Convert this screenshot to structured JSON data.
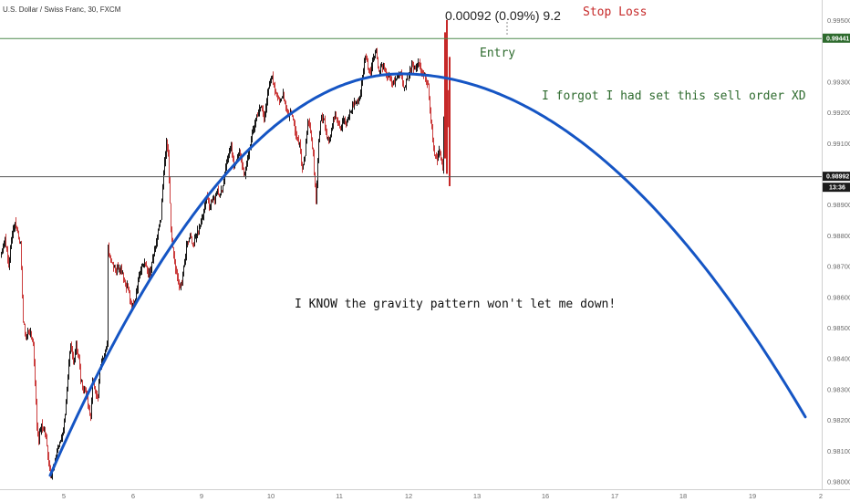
{
  "symbol_label": "U.S. Dollar / Swiss Franc, 30, FXCM",
  "colors": {
    "up": "#000000",
    "down": "#c62828",
    "curve": "#1555c4",
    "entry_line": "#4e8a4e",
    "price_line": "#555555",
    "annotation_green": "#2e6b2e",
    "annotation_red": "#c62828"
  },
  "chart_data": {
    "type": "candlestick",
    "instrument": "U.S. Dollar / Swiss Franc, 30, FXCM",
    "x_tick_labels": [
      "5",
      "6",
      "9",
      "10",
      "11",
      "12",
      "13",
      "16",
      "17",
      "18",
      "19",
      "2"
    ],
    "y_tick_labels": [
      "0.99500",
      "0.99441",
      "0.99300",
      "0.99200",
      "0.99100",
      "0.98992",
      "0.98900",
      "0.98800",
      "0.98700",
      "0.98600",
      "0.98500",
      "0.98400",
      "0.98300",
      "0.98200",
      "0.98100",
      "0.98000"
    ],
    "y_range": [
      0.97975,
      0.99565
    ],
    "grid": false,
    "entry_price": 0.99441,
    "entry_price_label": "0.99441",
    "current_price": 0.98992,
    "current_price_label": "0.98992",
    "countdown_label": "13:36",
    "measure_label": "0.00092 (0.09%) 9.2",
    "annotations": {
      "stop_loss": "Stop Loss",
      "entry": "Entry",
      "forgot": "I forgot I had set this sell order XD",
      "gravity": "I KNOW the gravity pattern won't let me down!"
    },
    "close_path": [
      [
        0,
        0.9873
      ],
      [
        5,
        0.9879
      ],
      [
        9,
        0.987
      ],
      [
        13,
        0.9881
      ],
      [
        16,
        0.9884
      ],
      [
        19,
        0.9881
      ],
      [
        22,
        0.9877
      ],
      [
        25,
        0.9852
      ],
      [
        28,
        0.9847
      ],
      [
        31,
        0.9849
      ],
      [
        34,
        0.9847
      ],
      [
        36,
        0.9845
      ],
      [
        38,
        0.9833
      ],
      [
        40,
        0.9818
      ],
      [
        42,
        0.9814
      ],
      [
        45,
        0.9818
      ],
      [
        49,
        0.9816
      ],
      [
        52,
        0.9809
      ],
      [
        55,
        0.9802
      ],
      [
        59,
        0.9805
      ],
      [
        62,
        0.981
      ],
      [
        66,
        0.9813
      ],
      [
        70,
        0.9819
      ],
      [
        73,
        0.9829
      ],
      [
        75,
        0.9838
      ],
      [
        77,
        0.9844
      ],
      [
        80,
        0.9839
      ],
      [
        83,
        0.9845
      ],
      [
        86,
        0.984
      ],
      [
        88,
        0.9833
      ],
      [
        91,
        0.983
      ],
      [
        94,
        0.9829
      ],
      [
        96,
        0.9824
      ],
      [
        99,
        0.9821
      ],
      [
        101,
        0.9832
      ],
      [
        104,
        0.983
      ],
      [
        107,
        0.9827
      ],
      [
        109,
        0.9836
      ],
      [
        112,
        0.984
      ],
      [
        115,
        0.9843
      ],
      [
        117,
        0.9844
      ],
      [
        118,
        0.9876
      ],
      [
        120,
        0.9873
      ],
      [
        123,
        0.9871
      ],
      [
        127,
        0.9869
      ],
      [
        130,
        0.987
      ],
      [
        134,
        0.9868
      ],
      [
        137,
        0.9864
      ],
      [
        140,
        0.9863
      ],
      [
        143,
        0.9857
      ],
      [
        146,
        0.9858
      ],
      [
        149,
        0.9861
      ],
      [
        152,
        0.9868
      ],
      [
        155,
        0.987
      ],
      [
        158,
        0.9871
      ],
      [
        161,
        0.9869
      ],
      [
        164,
        0.9867
      ],
      [
        167,
        0.9872
      ],
      [
        170,
        0.9876
      ],
      [
        172,
        0.988
      ],
      [
        174,
        0.9883
      ],
      [
        176,
        0.9885
      ],
      [
        178,
        0.9895
      ],
      [
        180,
        0.9904
      ],
      [
        182,
        0.991
      ],
      [
        184,
        0.9906
      ],
      [
        187,
        0.9882
      ],
      [
        190,
        0.9873
      ],
      [
        193,
        0.9868
      ],
      [
        196,
        0.9863
      ],
      [
        199,
        0.9865
      ],
      [
        202,
        0.9872
      ],
      [
        205,
        0.9878
      ],
      [
        208,
        0.988
      ],
      [
        211,
        0.9877
      ],
      [
        214,
        0.9879
      ],
      [
        217,
        0.9882
      ],
      [
        220,
        0.9884
      ],
      [
        223,
        0.9888
      ],
      [
        226,
        0.9893
      ],
      [
        229,
        0.989
      ],
      [
        232,
        0.9891
      ],
      [
        235,
        0.9892
      ],
      [
        238,
        0.9895
      ],
      [
        241,
        0.9893
      ],
      [
        244,
        0.9896
      ],
      [
        247,
        0.9903
      ],
      [
        250,
        0.9906
      ],
      [
        253,
        0.9908
      ],
      [
        256,
        0.9902
      ],
      [
        259,
        0.9905
      ],
      [
        262,
        0.9907
      ],
      [
        265,
        0.9903
      ],
      [
        268,
        0.9899
      ],
      [
        271,
        0.9905
      ],
      [
        274,
        0.9909
      ],
      [
        277,
        0.9914
      ],
      [
        280,
        0.9918
      ],
      [
        283,
        0.992
      ],
      [
        286,
        0.9922
      ],
      [
        289,
        0.9918
      ],
      [
        292,
        0.9924
      ],
      [
        295,
        0.9929
      ],
      [
        298,
        0.9932
      ],
      [
        301,
        0.9927
      ],
      [
        304,
        0.9926
      ],
      [
        307,
        0.9923
      ],
      [
        310,
        0.9926
      ],
      [
        313,
        0.9922
      ],
      [
        316,
        0.9919
      ],
      [
        319,
        0.992
      ],
      [
        322,
        0.9916
      ],
      [
        325,
        0.9912
      ],
      [
        328,
        0.991
      ],
      [
        331,
        0.9902
      ],
      [
        334,
        0.9905
      ],
      [
        337,
        0.9918
      ],
      [
        340,
        0.9913
      ],
      [
        343,
        0.9906
      ],
      [
        346,
        0.9891
      ],
      [
        349,
        0.9911
      ],
      [
        352,
        0.9919
      ],
      [
        355,
        0.9917
      ],
      [
        358,
        0.9912
      ],
      [
        361,
        0.9911
      ],
      [
        364,
        0.9916
      ],
      [
        367,
        0.992
      ],
      [
        370,
        0.9917
      ],
      [
        373,
        0.9915
      ],
      [
        376,
        0.9918
      ],
      [
        379,
        0.9916
      ],
      [
        382,
        0.9919
      ],
      [
        385,
        0.9921
      ],
      [
        388,
        0.9923
      ],
      [
        391,
        0.9923
      ],
      [
        394,
        0.9925
      ],
      [
        397,
        0.9931
      ],
      [
        400,
        0.9939
      ],
      [
        403,
        0.9935
      ],
      [
        406,
        0.9933
      ],
      [
        409,
        0.9938
      ],
      [
        412,
        0.994
      ],
      [
        415,
        0.9933
      ],
      [
        418,
        0.9935
      ],
      [
        421,
        0.9934
      ],
      [
        424,
        0.9932
      ],
      [
        427,
        0.9931
      ],
      [
        430,
        0.9929
      ],
      [
        433,
        0.993
      ],
      [
        436,
        0.9932
      ],
      [
        439,
        0.9933
      ],
      [
        442,
        0.9928
      ],
      [
        445,
        0.993
      ],
      [
        448,
        0.9932
      ],
      [
        451,
        0.9935
      ],
      [
        454,
        0.9934
      ],
      [
        457,
        0.9936
      ],
      [
        460,
        0.9935
      ],
      [
        463,
        0.9933
      ],
      [
        466,
        0.9931
      ],
      [
        469,
        0.9929
      ],
      [
        471,
        0.9921
      ],
      [
        473,
        0.9915
      ],
      [
        475,
        0.9908
      ],
      [
        477,
        0.9906
      ],
      [
        479,
        0.9904
      ],
      [
        481,
        0.9908
      ],
      [
        483,
        0.9905
      ],
      [
        485,
        0.9902
      ],
      [
        487,
        0.9935
      ],
      [
        489,
        0.9938
      ],
      [
        491,
        0.9915
      ],
      [
        493,
        0.98992
      ]
    ],
    "parabola": {
      "x_start": 55,
      "x_vertex": 440,
      "x_end": 883,
      "y_vertex": 0.99325,
      "y_start": 0.9802,
      "y_end": 0.9821
    }
  }
}
